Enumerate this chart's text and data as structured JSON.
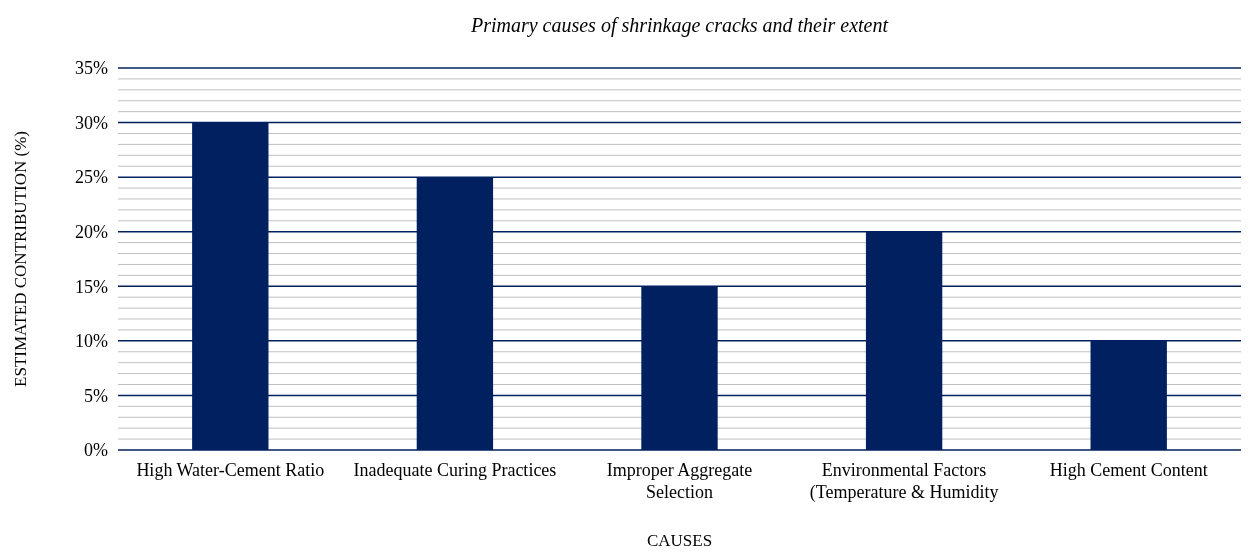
{
  "chart_data": {
    "type": "bar",
    "title": "Primary causes of shrinkage cracks and their extent",
    "xlabel": "CAUSES",
    "ylabel": "ESTIMATED CONTRIBUTION (%)",
    "categories": [
      "High Water-Cement Ratio",
      "Inadequate Curing Practices",
      "Improper Aggregate Selection",
      "Environmental Factors (Temperature & Humidity",
      "High Cement Content"
    ],
    "values": [
      30,
      25,
      15,
      20,
      10
    ],
    "color": "#002060",
    "ylim": [
      0,
      35
    ],
    "yticks": [
      {
        "value": 0,
        "label": "0%"
      },
      {
        "value": 1,
        "label": null
      },
      {
        "value": 2,
        "label": null
      },
      {
        "value": 3,
        "label": null
      },
      {
        "value": 4,
        "label": null
      },
      {
        "value": 5,
        "label": "5%"
      },
      {
        "value": 6,
        "label": null
      },
      {
        "value": 7,
        "label": null
      },
      {
        "value": 8,
        "label": null
      },
      {
        "value": 9,
        "label": null
      },
      {
        "value": 10,
        "label": "10%"
      },
      {
        "value": 11,
        "label": null
      },
      {
        "value": 12,
        "label": null
      },
      {
        "value": 13,
        "label": null
      },
      {
        "value": 14,
        "label": null
      },
      {
        "value": 15,
        "label": "15%"
      },
      {
        "value": 16,
        "label": null
      },
      {
        "value": 17,
        "label": null
      },
      {
        "value": 18,
        "label": null
      },
      {
        "value": 19,
        "label": null
      },
      {
        "value": 20,
        "label": "20%"
      },
      {
        "value": 21,
        "label": null
      },
      {
        "value": 22,
        "label": null
      },
      {
        "value": 23,
        "label": null
      },
      {
        "value": 24,
        "label": null
      },
      {
        "value": 25,
        "label": "25%"
      },
      {
        "value": 26,
        "label": null
      },
      {
        "value": 27,
        "label": null
      },
      {
        "value": 28,
        "label": null
      },
      {
        "value": 29,
        "label": null
      },
      {
        "value": 30,
        "label": "30%"
      },
      {
        "value": 31,
        "label": null
      },
      {
        "value": 32,
        "label": null
      },
      {
        "value": 33,
        "label": null
      },
      {
        "value": 34,
        "label": null
      },
      {
        "value": 35,
        "label": "35%"
      }
    ],
    "grid": "y"
  }
}
